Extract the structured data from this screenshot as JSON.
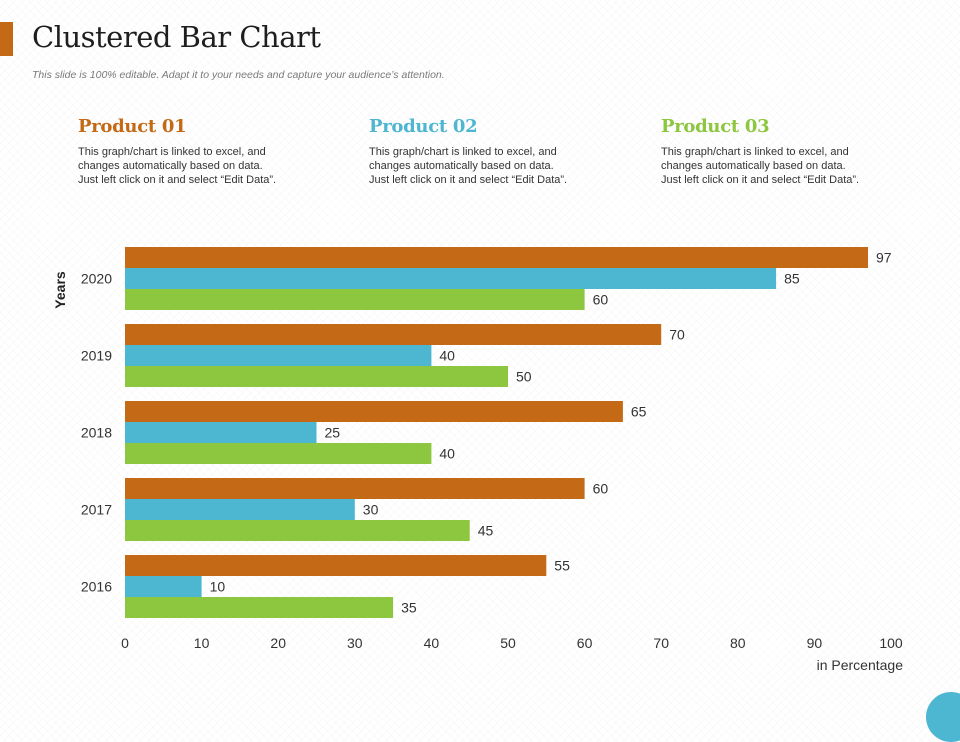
{
  "slide": {
    "title": "Clustered Bar Chart",
    "subtitle": "This slide is 100% editable. Adapt it to your needs and capture your audience’s attention."
  },
  "products": [
    {
      "name": "Product 01",
      "color": "#c46a16",
      "desc_lines": [
        "This graph/chart is linked to excel, and",
        "changes automatically based on data.",
        "Just left click on it and select “Edit Data”."
      ]
    },
    {
      "name": "Product 02",
      "color": "#4db6d0",
      "desc_lines": [
        "This graph/chart is linked to excel, and",
        "changes automatically based on data.",
        "Just left click on it and select “Edit Data”."
      ]
    },
    {
      "name": "Product 03",
      "color": "#8dc63f",
      "desc_lines": [
        "This graph/chart is linked to excel, and",
        "changes automatically based on data.",
        "Just left click on it and select “Edit Data”."
      ]
    }
  ],
  "colors": {
    "accent": "#c46a16",
    "corner": "#4db6d0",
    "axis_text": "#333333"
  },
  "chart_data": {
    "type": "bar",
    "orientation": "horizontal",
    "categories": [
      "2020",
      "2019",
      "2018",
      "2017",
      "2016"
    ],
    "series": [
      {
        "name": "Product 01",
        "color": "#c46a16",
        "values": [
          97,
          70,
          65,
          60,
          55
        ]
      },
      {
        "name": "Product 02",
        "color": "#4db6d0",
        "values": [
          85,
          40,
          25,
          30,
          10
        ]
      },
      {
        "name": "Product 03",
        "color": "#8dc63f",
        "values": [
          60,
          50,
          40,
          45,
          35
        ]
      }
    ],
    "xlabel": "in Percentage",
    "ylabel": "Years",
    "xlim": [
      0,
      100
    ],
    "xticks": [
      0,
      10,
      20,
      30,
      40,
      50,
      60,
      70,
      80,
      90,
      100
    ],
    "grid": false,
    "data_labels": true
  }
}
